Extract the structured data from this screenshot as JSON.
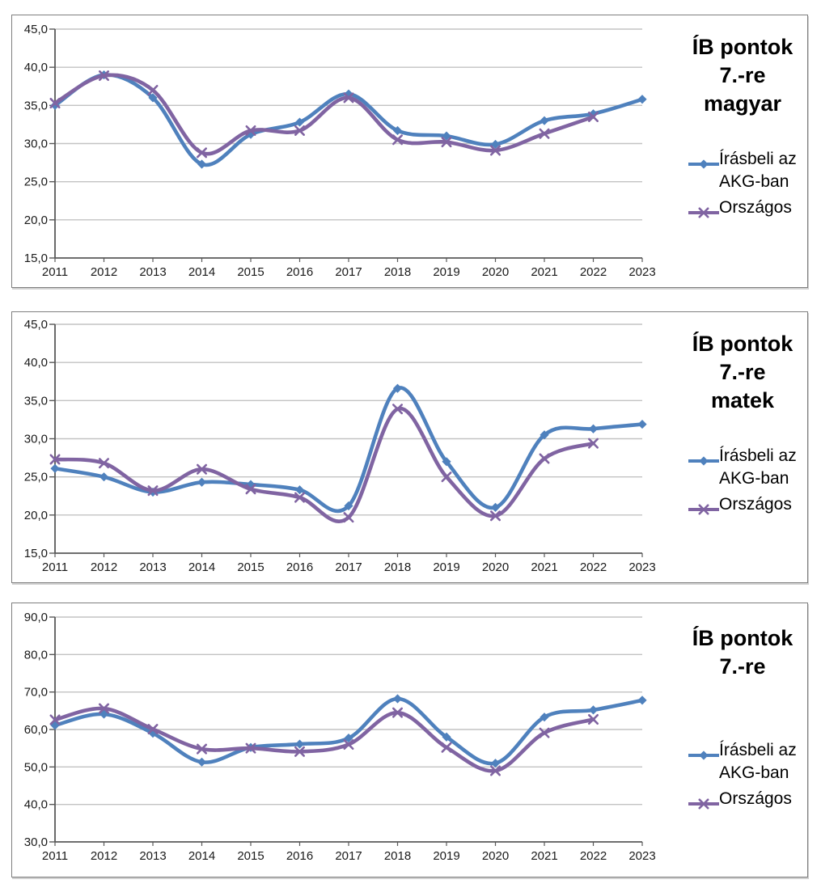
{
  "page": {
    "background": "#ffffff"
  },
  "colors": {
    "series_blue": "#4F81BD",
    "series_purple": "#8064A2",
    "gridline": "#C3C3C3",
    "axis": "#595959",
    "panel_border": "#7F7F7F",
    "label_text": "#1A1A1A",
    "title_text": "#000000"
  },
  "chart_data": [
    {
      "type": "line",
      "title": "ÍB pontok 7.-re magyar",
      "title_lines": [
        "ÍB pontok",
        "7.-re",
        "magyar"
      ],
      "categories": [
        "2011",
        "2012",
        "2013",
        "2014",
        "2015",
        "2016",
        "2017",
        "2018",
        "2019",
        "2020",
        "2021",
        "2022",
        "2023"
      ],
      "ylim": [
        15,
        45
      ],
      "ytick_step": 5,
      "ytick_labels": [
        "15,0",
        "20,0",
        "25,0",
        "30,0",
        "35,0",
        "40,0",
        "45,0"
      ],
      "grid": true,
      "legend_position": "right",
      "smooth_lines": true,
      "series": [
        {
          "name": "Írásbeli az AKG-ban",
          "color": "#4F81BD",
          "marker": "diamond",
          "values": [
            35.0,
            39.0,
            36.0,
            27.3,
            31.2,
            32.8,
            36.5,
            31.7,
            31.0,
            29.9,
            33.0,
            33.9,
            35.8
          ]
        },
        {
          "name": "Országos",
          "color": "#8064A2",
          "marker": "x",
          "values": [
            35.3,
            38.9,
            37.0,
            28.8,
            31.7,
            31.7,
            36.0,
            30.5,
            30.2,
            29.1,
            31.3,
            33.5,
            null
          ]
        }
      ]
    },
    {
      "type": "line",
      "title": "ÍB pontok 7.-re matek",
      "title_lines": [
        "ÍB pontok",
        "7.-re",
        "matek"
      ],
      "categories": [
        "2011",
        "2012",
        "2013",
        "2014",
        "2015",
        "2016",
        "2017",
        "2018",
        "2019",
        "2020",
        "2021",
        "2022",
        "2023"
      ],
      "ylim": [
        15,
        45
      ],
      "ytick_step": 5,
      "ytick_labels": [
        "15,0",
        "20,0",
        "25,0",
        "30,0",
        "35,0",
        "40,0",
        "45,0"
      ],
      "grid": true,
      "legend_position": "right",
      "smooth_lines": true,
      "series": [
        {
          "name": "Írásbeli az AKG-ban",
          "color": "#4F81BD",
          "marker": "diamond",
          "values": [
            26.1,
            25.0,
            23.0,
            24.3,
            24.0,
            23.3,
            21.2,
            36.6,
            27.0,
            21.0,
            30.5,
            31.3,
            31.9
          ]
        },
        {
          "name": "Országos",
          "color": "#8064A2",
          "marker": "x",
          "values": [
            27.3,
            26.8,
            23.2,
            26.0,
            23.4,
            22.3,
            19.7,
            33.9,
            25.0,
            19.9,
            27.4,
            29.4,
            null
          ]
        }
      ]
    },
    {
      "type": "line",
      "title": "ÍB pontok 7.-re",
      "title_lines": [
        "ÍB pontok",
        "7.-re"
      ],
      "categories": [
        "2011",
        "2012",
        "2013",
        "2014",
        "2015",
        "2016",
        "2017",
        "2018",
        "2019",
        "2020",
        "2021",
        "2022",
        "2023"
      ],
      "ylim": [
        30,
        90
      ],
      "ytick_step": 10,
      "ytick_labels": [
        "30,0",
        "40,0",
        "50,0",
        "60,0",
        "70,0",
        "80,0",
        "90,0"
      ],
      "grid": true,
      "legend_position": "right",
      "smooth_lines": true,
      "series": [
        {
          "name": "Írásbeli az AKG-ban",
          "color": "#4F81BD",
          "marker": "diamond",
          "values": [
            61.1,
            64.1,
            59.0,
            51.3,
            55.2,
            56.1,
            57.7,
            68.2,
            58.0,
            51.0,
            63.3,
            65.2,
            67.8
          ]
        },
        {
          "name": "Országos",
          "color": "#8064A2",
          "marker": "x",
          "values": [
            62.6,
            65.6,
            60.1,
            54.8,
            55.0,
            54.1,
            56.0,
            64.5,
            55.2,
            49.0,
            59.1,
            62.7,
            null
          ]
        }
      ]
    }
  ]
}
